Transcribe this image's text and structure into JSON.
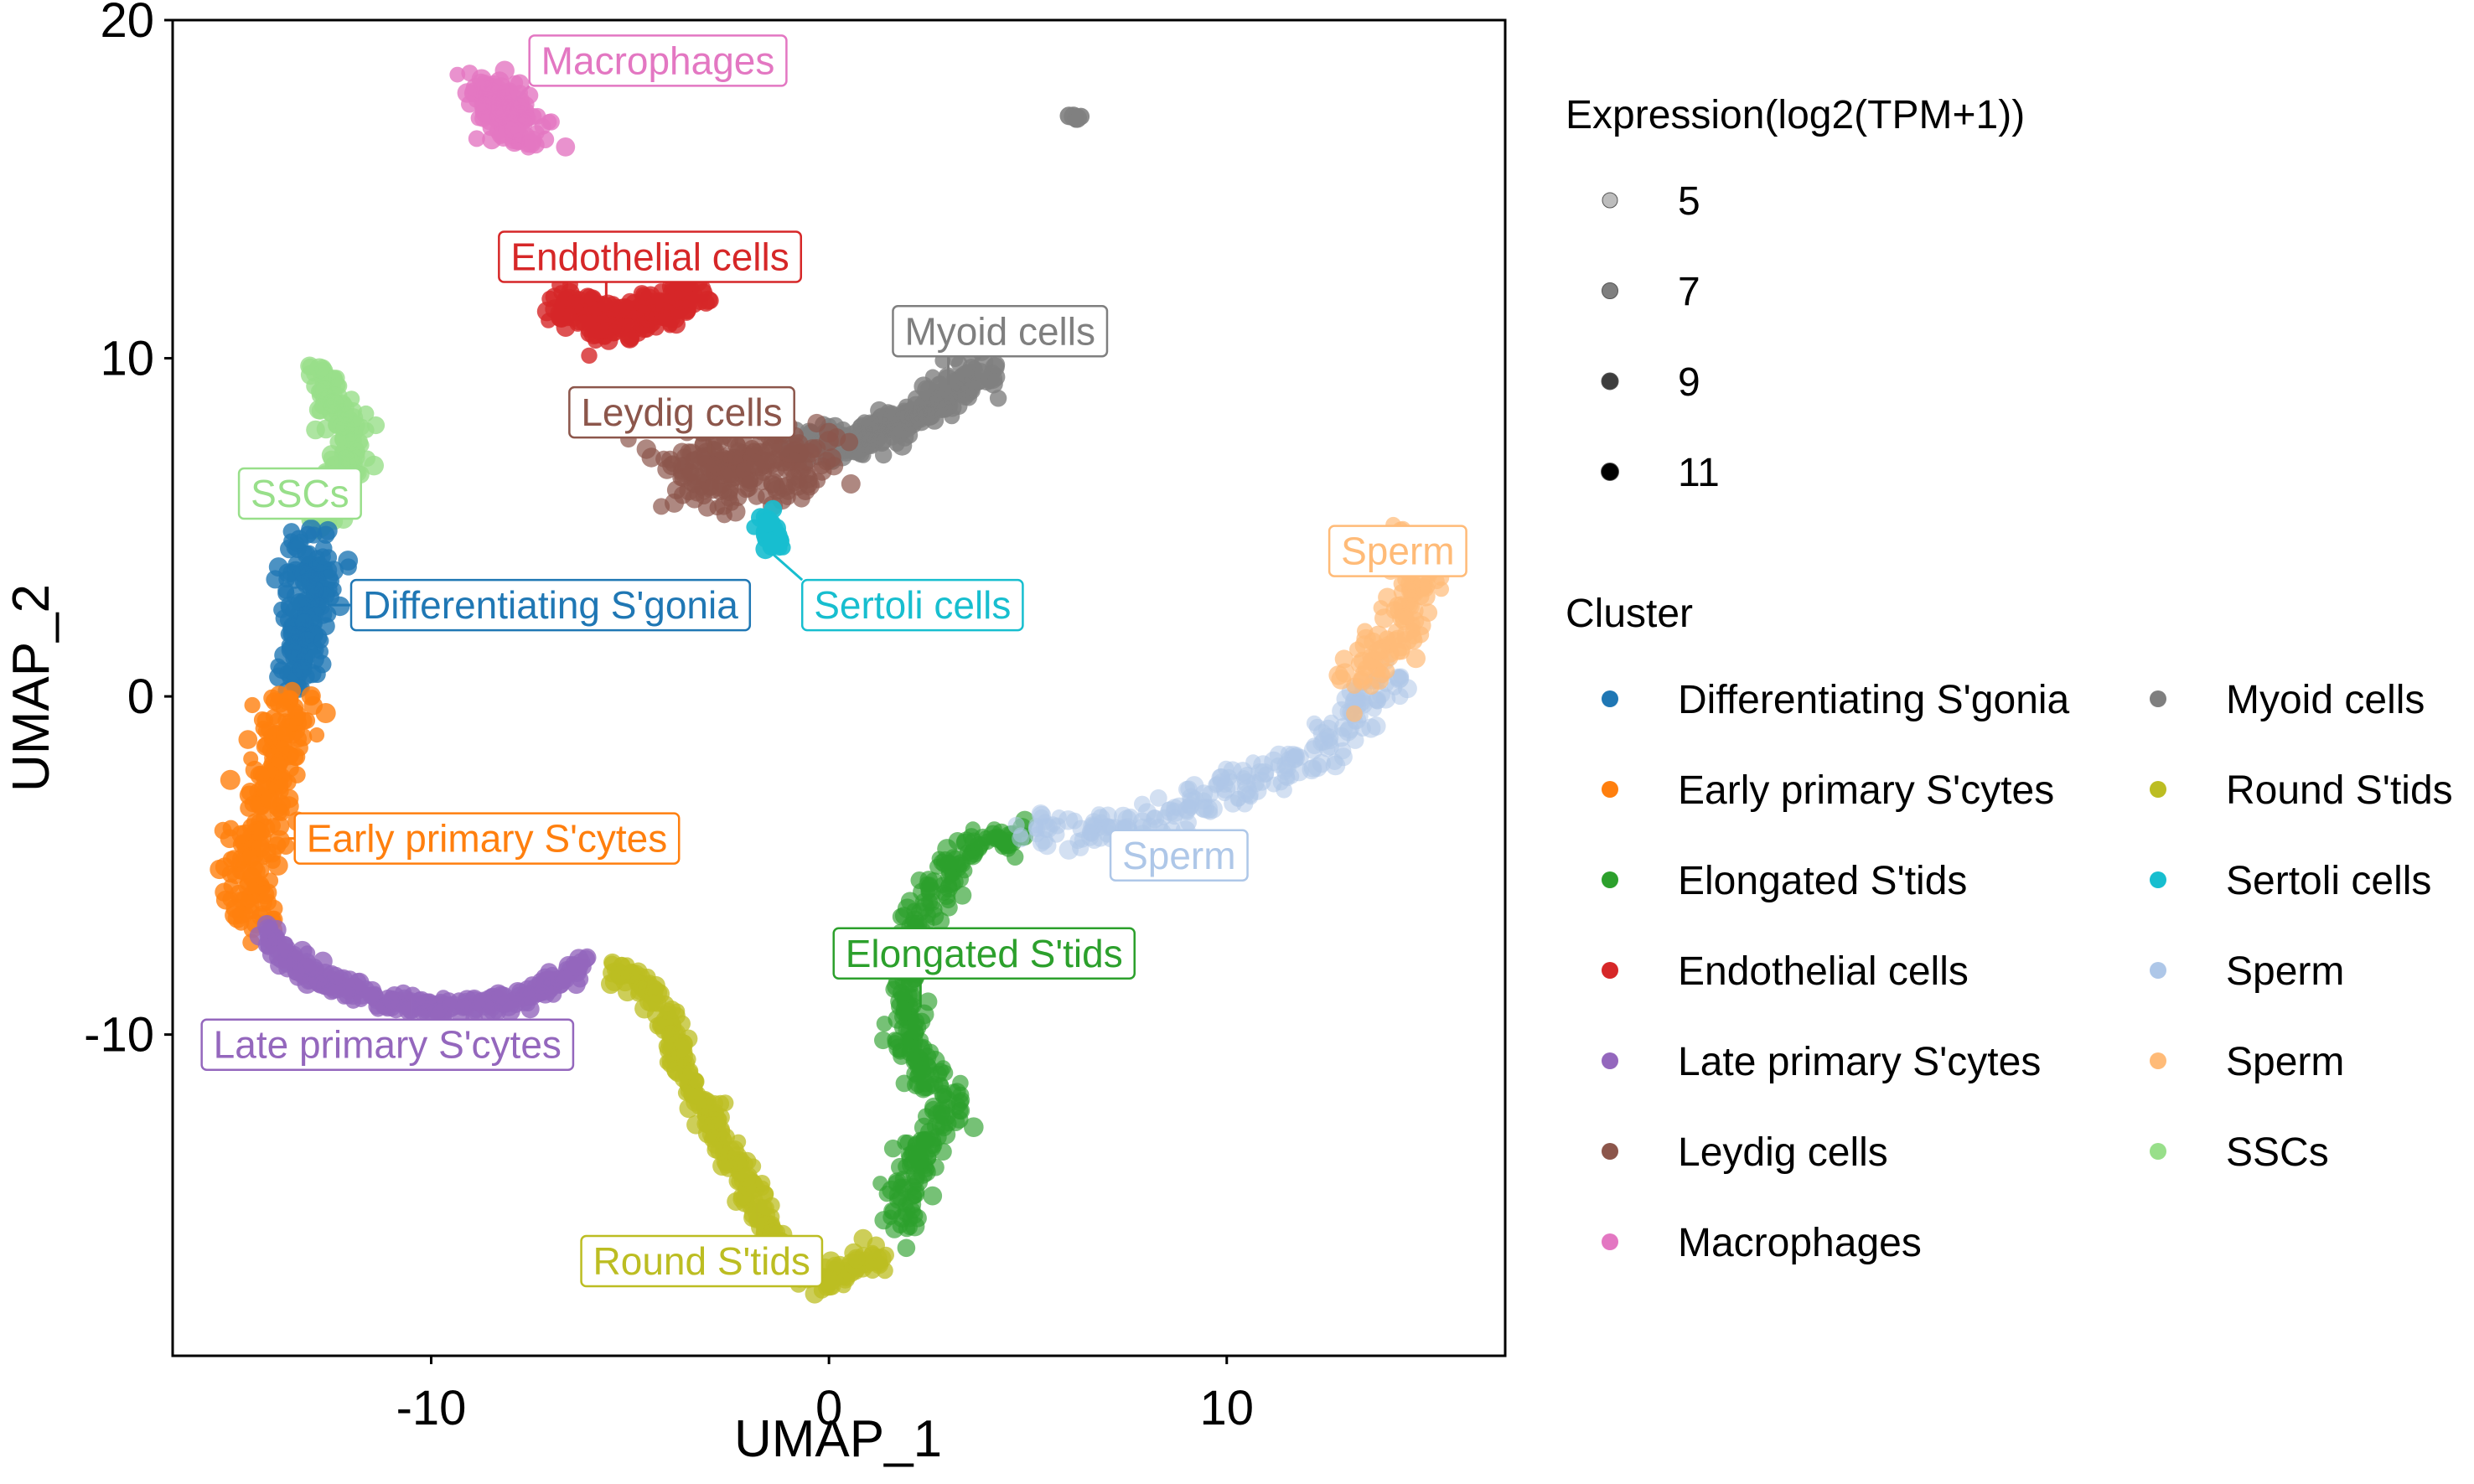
{
  "chart_data": {
    "type": "scatter",
    "xlabel": "UMAP_1",
    "ylabel": "UMAP_2",
    "xlim": [
      -16.5,
      17
    ],
    "ylim": [
      -19.5,
      20
    ],
    "x_ticks": [
      -10,
      0,
      10
    ],
    "y_ticks": [
      -10,
      0,
      10,
      20
    ],
    "grid": false,
    "legend_placement": "right",
    "size_legend": {
      "title": "Expression(log2(TPM+1))",
      "entries": [
        {
          "label": "5",
          "value": 5
        },
        {
          "label": "7",
          "value": 7
        },
        {
          "label": "9",
          "value": 9
        },
        {
          "label": "11",
          "value": 11
        }
      ]
    },
    "color_legend": {
      "title": "Cluster",
      "entries": [
        {
          "label": "Differentiating S'gonia",
          "color": "#1f77b4"
        },
        {
          "label": "Early primary S'cytes",
          "color": "#ff7f0e"
        },
        {
          "label": "Elongated S'tids",
          "color": "#2ca02c"
        },
        {
          "label": "Endothelial cells",
          "color": "#d62728"
        },
        {
          "label": "Late primary S'cytes",
          "color": "#9467bd"
        },
        {
          "label": "Leydig cells",
          "color": "#8c564b"
        },
        {
          "label": "Macrophages",
          "color": "#e377c2"
        },
        {
          "label": "Myoid cells",
          "color": "#7f7f7f"
        },
        {
          "label": "Round S'tids",
          "color": "#bcbd22"
        },
        {
          "label": "Sertoli cells",
          "color": "#17becf"
        },
        {
          "label": "Sperm",
          "color": "#aec7e8"
        },
        {
          "label": "Sperm",
          "color": "#ffbb78"
        },
        {
          "label": "SSCs",
          "color": "#98df8a"
        }
      ]
    },
    "series": [
      {
        "name": "Macrophages",
        "color": "#e377c2",
        "spread": 0.35,
        "density": 70,
        "alpha": 0.8,
        "path": [
          [
            -8.6,
            18.2
          ],
          [
            -8.3,
            17.6
          ],
          [
            -8.0,
            17.0
          ],
          [
            -7.6,
            16.6
          ]
        ]
      },
      {
        "name": "Endothelial cells",
        "color": "#d62728",
        "spread": 0.3,
        "density": 60,
        "alpha": 0.8,
        "path": [
          [
            -6.8,
            11.8
          ],
          [
            -6.2,
            11.4
          ],
          [
            -5.6,
            11.0
          ],
          [
            -5.0,
            11.1
          ],
          [
            -4.2,
            11.5
          ],
          [
            -3.3,
            12.0
          ]
        ]
      },
      {
        "name": "Myoid cells",
        "color": "#7f7f7f",
        "spread": 0.28,
        "density": 50,
        "alpha": 0.8,
        "path": [
          [
            -0.8,
            7.2
          ],
          [
            0.8,
            7.6
          ],
          [
            2.0,
            8.2
          ],
          [
            3.0,
            9.0
          ],
          [
            3.9,
            9.7
          ]
        ]
      },
      {
        "name": "Myoid cells",
        "color": "#7f7f7f",
        "spread": 0.1,
        "density": 15,
        "alpha": 0.9,
        "path": [
          [
            6.2,
            17.0
          ],
          [
            6.3,
            17.1
          ]
        ]
      },
      {
        "name": "Leydig cells",
        "color": "#8c564b",
        "spread": 0.55,
        "density": 70,
        "alpha": 0.7,
        "path": [
          [
            -3.8,
            6.4
          ],
          [
            -2.8,
            6.8
          ],
          [
            -1.6,
            7.1
          ],
          [
            -0.5,
            7.0
          ]
        ]
      },
      {
        "name": "Sertoli cells",
        "color": "#17becf",
        "spread": 0.12,
        "density": 40,
        "alpha": 0.9,
        "path": [
          [
            -1.6,
            5.2
          ],
          [
            -1.3,
            4.5
          ]
        ]
      },
      {
        "name": "SSCs",
        "color": "#98df8a",
        "spread": 0.22,
        "density": 40,
        "alpha": 0.8,
        "path": [
          [
            -12.9,
            9.6
          ],
          [
            -12.5,
            8.6
          ],
          [
            -11.9,
            7.5
          ],
          [
            -12.3,
            6.3
          ],
          [
            -12.8,
            5.0
          ]
        ]
      },
      {
        "name": "Differentiating S'gonia",
        "color": "#1f77b4",
        "spread": 0.35,
        "density": 45,
        "alpha": 0.8,
        "path": [
          [
            -12.9,
            4.5
          ],
          [
            -13.0,
            3.0
          ],
          [
            -13.2,
            1.8
          ],
          [
            -13.4,
            0.5
          ]
        ]
      },
      {
        "name": "Early primary S'cytes",
        "color": "#ff7f0e",
        "spread": 0.35,
        "density": 30,
        "alpha": 0.8,
        "path": [
          [
            -13.4,
            0.0
          ],
          [
            -14.0,
            -2.0
          ],
          [
            -14.3,
            -4.0
          ],
          [
            -14.6,
            -5.5
          ],
          [
            -14.3,
            -6.8
          ]
        ]
      },
      {
        "name": "Late primary S'cytes",
        "color": "#9467bd",
        "spread": 0.15,
        "density": 30,
        "alpha": 0.8,
        "path": [
          [
            -14.2,
            -6.9
          ],
          [
            -13.0,
            -8.3
          ],
          [
            -11.0,
            -9.1
          ],
          [
            -9.0,
            -9.2
          ],
          [
            -7.5,
            -8.8
          ],
          [
            -6.0,
            -7.9
          ]
        ]
      },
      {
        "name": "Round S'tids",
        "color": "#bcbd22",
        "spread": 0.18,
        "density": 30,
        "alpha": 0.75,
        "path": [
          [
            -5.5,
            -8.0
          ],
          [
            -4.5,
            -8.6
          ],
          [
            -3.6,
            -11.0
          ],
          [
            -2.4,
            -13.8
          ],
          [
            -1.5,
            -15.8
          ],
          [
            -0.8,
            -17.0
          ],
          [
            0.2,
            -17.2
          ],
          [
            1.3,
            -16.5
          ]
        ]
      },
      {
        "name": "Elongated S'tids",
        "color": "#2ca02c",
        "spread": 0.25,
        "density": 25,
        "alpha": 0.65,
        "path": [
          [
            1.8,
            -15.8
          ],
          [
            2.3,
            -13.5
          ],
          [
            3.1,
            -12.0
          ],
          [
            2.0,
            -10.5
          ],
          [
            2.0,
            -8.0
          ],
          [
            2.5,
            -6.0
          ],
          [
            3.5,
            -4.3
          ],
          [
            4.8,
            -4.2
          ]
        ]
      },
      {
        "name": "Sperm",
        "color": "#aec7e8",
        "spread": 0.28,
        "density": 20,
        "alpha": 0.55,
        "path": [
          [
            5.0,
            -4.0
          ],
          [
            8.0,
            -3.8
          ],
          [
            10.5,
            -2.6
          ],
          [
            12.5,
            -1.6
          ],
          [
            14.2,
            0.8
          ]
        ]
      },
      {
        "name": "Sperm",
        "color": "#ffbb78",
        "spread": 0.35,
        "density": 25,
        "alpha": 0.7,
        "path": [
          [
            13.3,
            0.4
          ],
          [
            14.5,
            2.2
          ],
          [
            14.8,
            3.8
          ],
          [
            14.4,
            4.7
          ]
        ]
      }
    ],
    "annotations": [
      {
        "text": "Macrophages",
        "x": -4.3,
        "y": 18.8,
        "color": "#e377c2",
        "anchor": [
          -7.9,
          17.6
        ]
      },
      {
        "text": "Endothelial cells",
        "x": -4.5,
        "y": 13.0,
        "color": "#d62728",
        "anchor": [
          -5.6,
          11.6
        ]
      },
      {
        "text": "Myoid cells",
        "x": 4.3,
        "y": 10.8,
        "color": "#7f7f7f",
        "anchor": [
          3.0,
          9.2
        ]
      },
      {
        "text": "Leydig cells",
        "x": -3.7,
        "y": 8.4,
        "color": "#8c564b",
        "anchor": [
          -3.0,
          7.2
        ]
      },
      {
        "text": "SSCs",
        "x": -13.3,
        "y": 6.0,
        "color": "#98df8a",
        "anchor": [
          -12.3,
          7.2
        ]
      },
      {
        "text": "Differentiating S'gonia",
        "x": -7.0,
        "y": 2.7,
        "color": "#1f77b4",
        "anchor": [
          -12.6,
          2.7
        ]
      },
      {
        "text": "Sertoli cells",
        "x": 2.1,
        "y": 2.7,
        "color": "#17becf",
        "anchor": [
          -1.4,
          4.2
        ]
      },
      {
        "text": "Sperm",
        "x": 14.3,
        "y": 4.3,
        "color": "#ffbb78",
        "anchor": [
          14.6,
          3.6
        ]
      },
      {
        "text": "Early primary S'cytes",
        "x": -8.6,
        "y": -4.2,
        "color": "#ff7f0e",
        "anchor": [
          -13.6,
          -4.2
        ]
      },
      {
        "text": "Sperm",
        "x": 8.8,
        "y": -4.7,
        "color": "#aec7e8",
        "anchor": [
          7.7,
          -3.8
        ]
      },
      {
        "text": "Elongated S'tids",
        "x": 3.9,
        "y": -7.6,
        "color": "#2ca02c",
        "anchor": [
          2.3,
          -9.2
        ]
      },
      {
        "text": "Late primary S'cytes",
        "x": -11.1,
        "y": -10.3,
        "color": "#9467bd",
        "anchor": [
          -10.5,
          -8.9
        ]
      },
      {
        "text": "Round S'tids",
        "x": -3.2,
        "y": -16.7,
        "color": "#bcbd22",
        "anchor": [
          -1.8,
          -15.0
        ]
      }
    ]
  }
}
